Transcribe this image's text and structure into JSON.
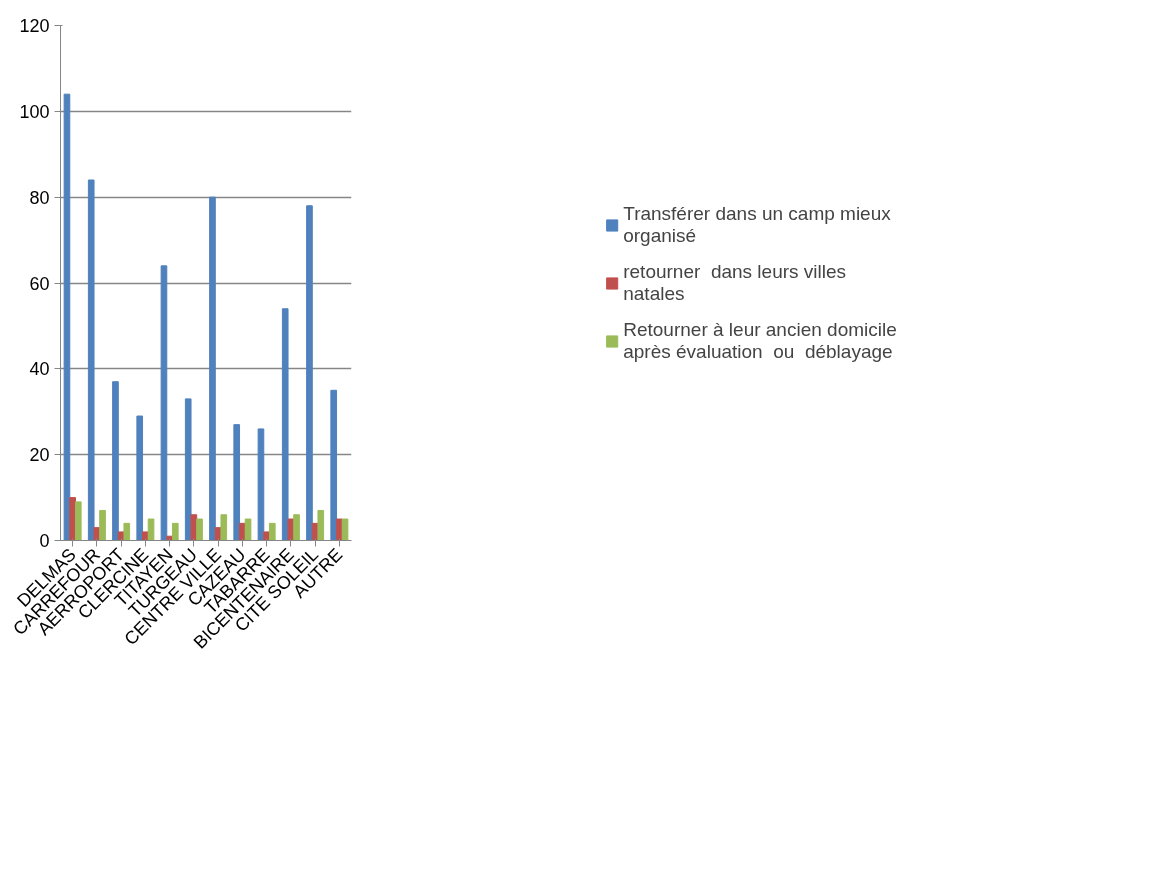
{
  "chart_data": {
    "type": "bar",
    "categories": [
      "DELMAS",
      "CARREFOUR",
      "AERROPORT",
      "CLERCINE",
      "TITAYEN",
      "TURGEAU",
      "CENTRE VILLE",
      "CAZEAU",
      "TABARRE",
      "BICENTENAIRE",
      "CITE SOLEIL",
      "AUTRE"
    ],
    "series": [
      {
        "name": "Transférer dans un camp mieux organisé",
        "color": "#4f81bd",
        "values": [
          104,
          84,
          37,
          29,
          64,
          33,
          80,
          27,
          26,
          54,
          78,
          35
        ]
      },
      {
        "name": "retourner  dans leurs villes natales",
        "color": "#c0504d",
        "values": [
          10,
          3,
          2,
          2,
          1,
          6,
          3,
          4,
          2,
          5,
          4,
          5
        ]
      },
      {
        "name": "Retourner à leur ancien domicile après évaluation  ou  déblayage",
        "color": "#9bbb59",
        "values": [
          9,
          7,
          4,
          5,
          4,
          5,
          6,
          5,
          4,
          6,
          7,
          5
        ]
      }
    ],
    "ylim": [
      0,
      120
    ],
    "yticks": [
      0,
      20,
      40,
      60,
      80,
      100,
      120
    ],
    "grid": "y",
    "legend": "right"
  }
}
